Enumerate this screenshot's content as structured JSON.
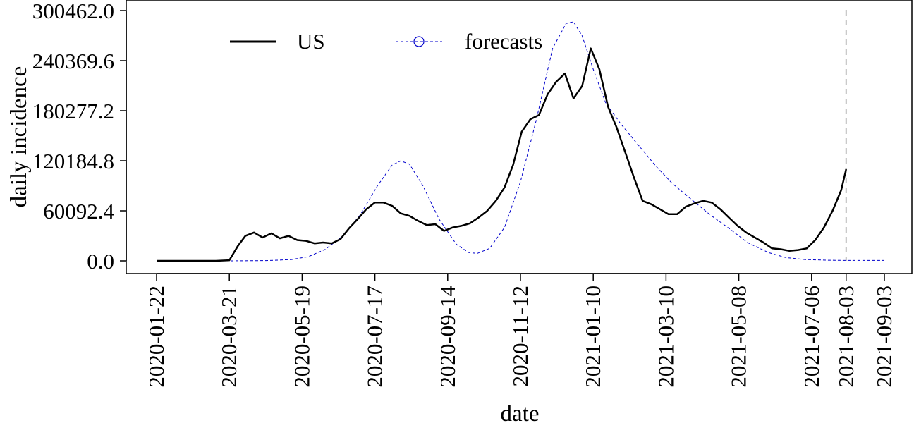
{
  "chart_data": {
    "type": "line",
    "xlabel": "date",
    "ylabel": "daily incidence",
    "x_tick_labels": [
      "2020-01-22",
      "2020-03-21",
      "2020-05-19",
      "2020-07-17",
      "2020-09-14",
      "2020-11-12",
      "2021-01-10",
      "2021-03-10",
      "2021-05-08",
      "2021-07-06",
      "2021-08-03",
      "2021-09-03"
    ],
    "y_tick_labels": [
      "0.0",
      "60092.4",
      "120184.8",
      "180277.2",
      "240369.6",
      "300462.0"
    ],
    "xlim": [
      "2020-01-22",
      "2021-09-03"
    ],
    "ylim": [
      0,
      300462
    ],
    "vline_date": "2021-08-03",
    "legend_position": "top-left",
    "grid": false,
    "series": [
      {
        "name": "US",
        "color": "#000000",
        "style": "solid",
        "points": [
          [
            "2020-01-22",
            0
          ],
          [
            "2020-02-15",
            0
          ],
          [
            "2020-03-10",
            0
          ],
          [
            "2020-03-21",
            800
          ],
          [
            "2020-03-28",
            18000
          ],
          [
            "2020-04-03",
            30000
          ],
          [
            "2020-04-10",
            34000
          ],
          [
            "2020-04-17",
            28000
          ],
          [
            "2020-04-24",
            33000
          ],
          [
            "2020-05-01",
            27000
          ],
          [
            "2020-05-08",
            30000
          ],
          [
            "2020-05-15",
            25000
          ],
          [
            "2020-05-22",
            24000
          ],
          [
            "2020-05-29",
            21000
          ],
          [
            "2020-06-05",
            22000
          ],
          [
            "2020-06-12",
            21000
          ],
          [
            "2020-06-19",
            26000
          ],
          [
            "2020-06-26",
            39000
          ],
          [
            "2020-07-03",
            50000
          ],
          [
            "2020-07-10",
            62000
          ],
          [
            "2020-07-17",
            70000
          ],
          [
            "2020-07-24",
            70000
          ],
          [
            "2020-07-31",
            66000
          ],
          [
            "2020-08-07",
            57000
          ],
          [
            "2020-08-14",
            54000
          ],
          [
            "2020-08-21",
            48000
          ],
          [
            "2020-08-28",
            43000
          ],
          [
            "2020-09-04",
            44000
          ],
          [
            "2020-09-11",
            36000
          ],
          [
            "2020-09-18",
            40000
          ],
          [
            "2020-09-25",
            42000
          ],
          [
            "2020-10-02",
            45000
          ],
          [
            "2020-10-09",
            52000
          ],
          [
            "2020-10-16",
            60000
          ],
          [
            "2020-10-23",
            72000
          ],
          [
            "2020-10-30",
            88000
          ],
          [
            "2020-11-06",
            115000
          ],
          [
            "2020-11-13",
            155000
          ],
          [
            "2020-11-20",
            170000
          ],
          [
            "2020-11-27",
            175000
          ],
          [
            "2020-12-04",
            200000
          ],
          [
            "2020-12-11",
            215000
          ],
          [
            "2020-12-18",
            225000
          ],
          [
            "2020-12-25",
            195000
          ],
          [
            "2021-01-01",
            210000
          ],
          [
            "2021-01-08",
            255000
          ],
          [
            "2021-01-15",
            230000
          ],
          [
            "2021-01-22",
            185000
          ],
          [
            "2021-01-29",
            160000
          ],
          [
            "2021-02-05",
            130000
          ],
          [
            "2021-02-12",
            100000
          ],
          [
            "2021-02-19",
            72000
          ],
          [
            "2021-02-26",
            68000
          ],
          [
            "2021-03-05",
            62000
          ],
          [
            "2021-03-12",
            56000
          ],
          [
            "2021-03-19",
            56000
          ],
          [
            "2021-03-26",
            65000
          ],
          [
            "2021-04-02",
            69000
          ],
          [
            "2021-04-09",
            72000
          ],
          [
            "2021-04-16",
            70000
          ],
          [
            "2021-04-23",
            62000
          ],
          [
            "2021-04-30",
            52000
          ],
          [
            "2021-05-07",
            42000
          ],
          [
            "2021-05-14",
            34000
          ],
          [
            "2021-05-21",
            28000
          ],
          [
            "2021-05-28",
            22000
          ],
          [
            "2021-06-04",
            15000
          ],
          [
            "2021-06-11",
            14000
          ],
          [
            "2021-06-18",
            12000
          ],
          [
            "2021-06-25",
            13000
          ],
          [
            "2021-07-02",
            15000
          ],
          [
            "2021-07-09",
            25000
          ],
          [
            "2021-07-16",
            40000
          ],
          [
            "2021-07-23",
            60000
          ],
          [
            "2021-07-30",
            85000
          ],
          [
            "2021-08-03",
            110000
          ]
        ]
      },
      {
        "name": "forecasts",
        "color": "#0000cc",
        "style": "dashed",
        "points": [
          [
            "2020-01-22",
            0
          ],
          [
            "2020-03-21",
            0
          ],
          [
            "2020-04-20",
            300
          ],
          [
            "2020-05-10",
            1500
          ],
          [
            "2020-05-24",
            5000
          ],
          [
            "2020-06-07",
            14000
          ],
          [
            "2020-06-21",
            30000
          ],
          [
            "2020-07-05",
            55000
          ],
          [
            "2020-07-19",
            90000
          ],
          [
            "2020-07-31",
            115000
          ],
          [
            "2020-08-07",
            120000
          ],
          [
            "2020-08-14",
            116000
          ],
          [
            "2020-08-25",
            90000
          ],
          [
            "2020-09-07",
            50000
          ],
          [
            "2020-09-21",
            20000
          ],
          [
            "2020-10-01",
            10000
          ],
          [
            "2020-10-08",
            9000
          ],
          [
            "2020-10-18",
            15000
          ],
          [
            "2020-10-30",
            40000
          ],
          [
            "2020-11-12",
            95000
          ],
          [
            "2020-11-25",
            170000
          ],
          [
            "2020-12-08",
            255000
          ],
          [
            "2020-12-19",
            285000
          ],
          [
            "2020-12-25",
            287000
          ],
          [
            "2021-01-01",
            270000
          ],
          [
            "2021-01-10",
            230000
          ],
          [
            "2021-01-20",
            190000
          ],
          [
            "2021-02-01",
            165000
          ],
          [
            "2021-02-15",
            140000
          ],
          [
            "2021-03-01",
            115000
          ],
          [
            "2021-03-15",
            93000
          ],
          [
            "2021-04-01",
            72000
          ],
          [
            "2021-04-15",
            55000
          ],
          [
            "2021-05-01",
            38000
          ],
          [
            "2021-05-15",
            22000
          ],
          [
            "2021-06-01",
            10000
          ],
          [
            "2021-06-15",
            4000
          ],
          [
            "2021-07-01",
            1500
          ],
          [
            "2021-07-20",
            800
          ],
          [
            "2021-08-03",
            500
          ],
          [
            "2021-09-03",
            500
          ]
        ]
      }
    ]
  }
}
